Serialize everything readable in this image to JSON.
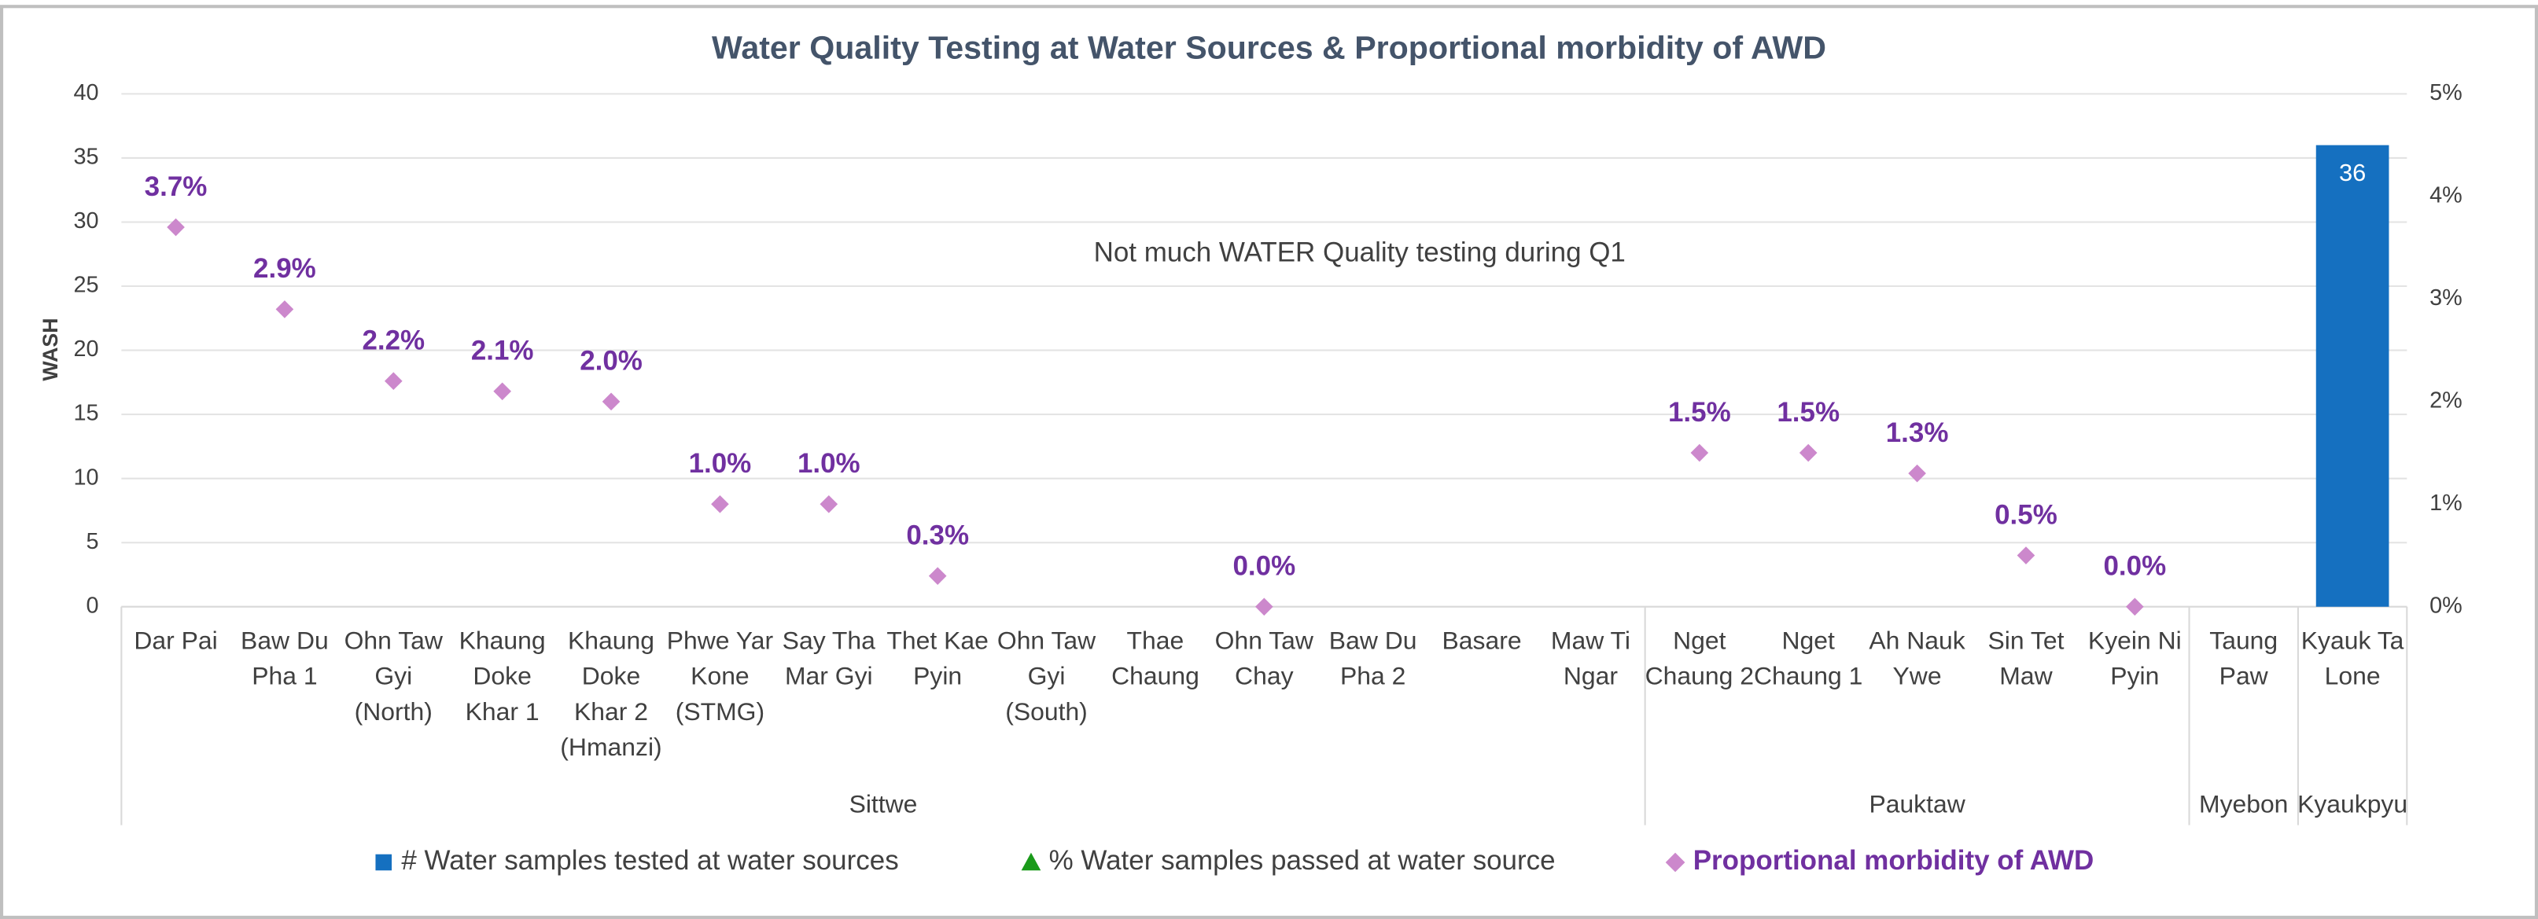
{
  "chart_data": {
    "type": "bar",
    "title": "Water Quality Testing at Water Sources & Proportional morbidity of AWD",
    "y_axis_label": "WASH",
    "annotation": "Not much WATER Quality testing during Q1",
    "categories": [
      "Dar Pai",
      "Baw Du Pha 1",
      "Ohn Taw Gyi (North)",
      "Khaung Doke Khar 1",
      "Khaung Doke Khar 2 (Hmanzi)",
      "Phwe Yar Kone (STMG)",
      "Say Tha Mar Gyi",
      "Thet Kae Pyin",
      "Ohn Taw Gyi (South)",
      "Thae Chaung",
      "Ohn Taw Chay",
      "Baw Du Pha 2",
      "Basare",
      "Maw Ti Ngar",
      "Nget Chaung 2",
      "Nget Chaung 1",
      "Ah Nauk Ywe",
      "Sin Tet Maw",
      "Kyein Ni Pyin",
      "Taung Paw",
      "Kyauk Ta Lone"
    ],
    "groups": [
      {
        "name": "Sittwe",
        "count": 14
      },
      {
        "name": "Pauktaw",
        "count": 5
      },
      {
        "name": "Myebon",
        "count": 1
      },
      {
        "name": "Kyaukpyu",
        "count": 1
      }
    ],
    "series": [
      {
        "name": "# Water samples tested at water sources",
        "type": "bar",
        "color": "#1570c0",
        "values": [
          null,
          null,
          null,
          null,
          null,
          null,
          null,
          null,
          null,
          null,
          null,
          null,
          null,
          null,
          null,
          null,
          null,
          null,
          null,
          null,
          36
        ]
      },
      {
        "name": "% Water samples passed at water source",
        "type": "scatter",
        "marker": "triangle",
        "color": "#1a9a1a",
        "axis": "y2",
        "values": [
          null,
          null,
          null,
          null,
          null,
          null,
          null,
          null,
          null,
          null,
          null,
          null,
          null,
          null,
          null,
          null,
          null,
          null,
          null,
          null,
          null
        ]
      },
      {
        "name": "Proportional morbidity of AWD",
        "type": "scatter",
        "marker": "diamond",
        "color": "#cc88cc",
        "label_color": "#7030a0",
        "axis": "y2",
        "values": [
          3.7,
          2.9,
          2.2,
          2.1,
          2.0,
          1.0,
          1.0,
          0.3,
          null,
          null,
          0.0,
          null,
          null,
          null,
          1.5,
          1.5,
          1.3,
          0.5,
          0.0,
          null,
          null
        ],
        "value_labels": [
          "3.7%",
          "2.9%",
          "2.2%",
          "2.1%",
          "2.0%",
          "1.0%",
          "1.0%",
          "0.3%",
          null,
          null,
          "0.0%",
          null,
          null,
          null,
          "1.5%",
          "1.5%",
          "1.3%",
          "0.5%",
          "0.0%",
          null,
          null
        ]
      }
    ],
    "ylim": [
      0,
      40
    ],
    "yticks": [
      0,
      5,
      10,
      15,
      20,
      25,
      30,
      35,
      40
    ],
    "y2lim": [
      0,
      5
    ],
    "y2ticks": [
      {
        "value": 0,
        "label": "0%"
      },
      {
        "value": 1,
        "label": "1%"
      },
      {
        "value": 2,
        "label": "2%"
      },
      {
        "value": 3,
        "label": "3%"
      },
      {
        "value": 4,
        "label": "4%"
      },
      {
        "value": 5,
        "label": "5%"
      }
    ],
    "grid": true,
    "legend": "bottom"
  }
}
